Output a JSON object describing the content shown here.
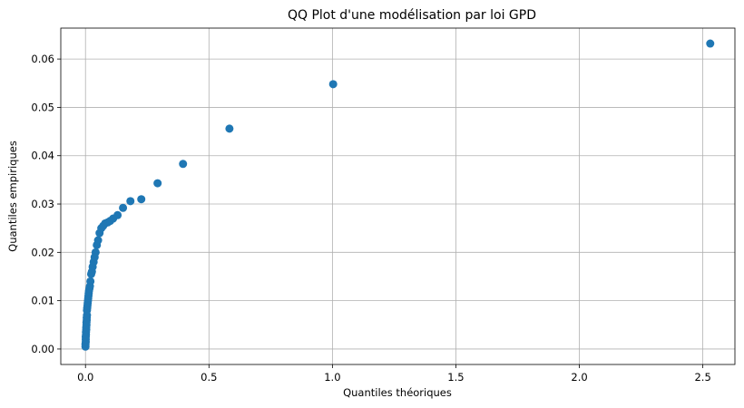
{
  "chart_data": {
    "type": "scatter",
    "title": "QQ Plot d'une modélisation par loi GPD",
    "xlabel": "Quantiles théoriques",
    "ylabel": "Quantiles empiriques",
    "xlim": [
      -0.1,
      2.63
    ],
    "ylim": [
      -0.0032,
      0.0664
    ],
    "xticks": [
      0.0,
      0.5,
      1.0,
      1.5,
      2.0,
      2.5
    ],
    "xtick_labels": [
      "0.0",
      "0.5",
      "1.0",
      "1.5",
      "2.0",
      "2.5"
    ],
    "yticks": [
      0.0,
      0.01,
      0.02,
      0.03,
      0.04,
      0.05,
      0.06
    ],
    "ytick_labels": [
      "0.00",
      "0.01",
      "0.02",
      "0.03",
      "0.04",
      "0.05",
      "0.06"
    ],
    "grid": true,
    "marker_color": "#1f77b4",
    "series": [
      {
        "x": [
          0.0,
          0.0,
          0.001,
          0.001,
          0.001,
          0.002,
          0.002,
          0.003,
          0.003,
          0.004,
          0.004,
          0.005,
          0.005,
          0.006,
          0.006,
          0.007,
          0.008,
          0.009,
          0.01,
          0.011,
          0.012,
          0.013,
          0.014,
          0.016,
          0.018,
          0.02,
          0.023,
          0.026,
          0.029,
          0.033,
          0.037,
          0.041,
          0.046,
          0.051,
          0.057,
          0.064,
          0.072,
          0.08,
          0.09,
          0.1,
          0.112,
          0.13,
          0.152,
          0.182,
          0.226,
          0.292,
          0.395,
          0.583,
          1.003,
          2.53
        ],
        "y": [
          0.0005,
          0.001,
          0.0015,
          0.002,
          0.0025,
          0.003,
          0.0035,
          0.004,
          0.0045,
          0.005,
          0.0055,
          0.006,
          0.0065,
          0.007,
          0.008,
          0.0085,
          0.009,
          0.0095,
          0.01,
          0.0105,
          0.011,
          0.0115,
          0.012,
          0.0125,
          0.013,
          0.014,
          0.0155,
          0.016,
          0.017,
          0.018,
          0.019,
          0.02,
          0.0215,
          0.0225,
          0.024,
          0.025,
          0.0255,
          0.026,
          0.0262,
          0.0265,
          0.027,
          0.0277,
          0.0292,
          0.0306,
          0.031,
          0.0343,
          0.0383,
          0.0456,
          0.0548,
          0.0632
        ]
      }
    ]
  }
}
